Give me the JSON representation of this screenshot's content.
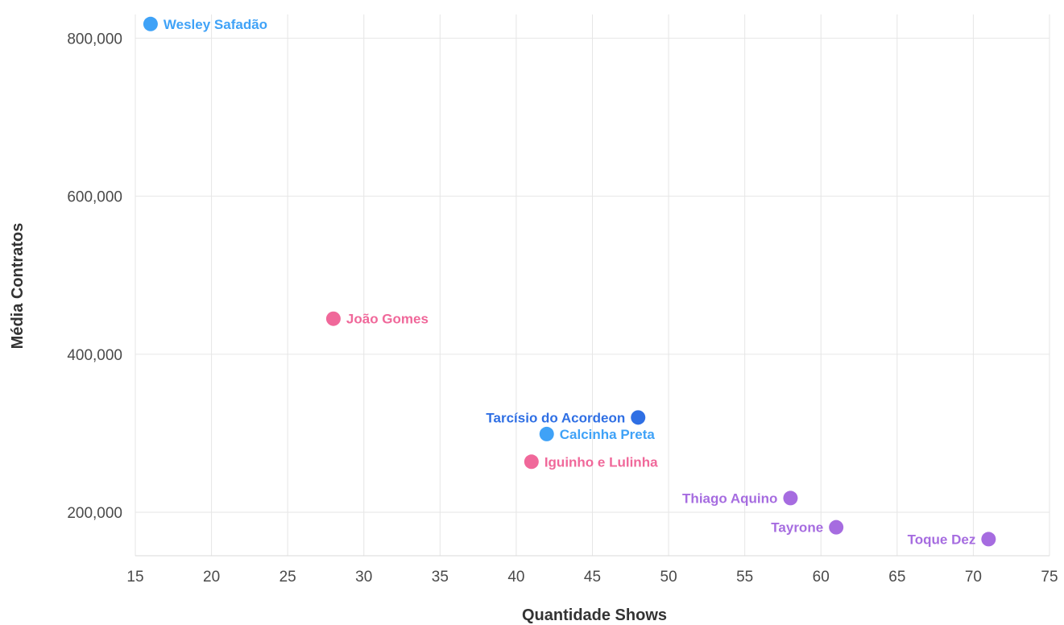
{
  "chart_data": {
    "type": "scatter",
    "xlabel": "Quantidade Shows",
    "ylabel": "Média Contratos",
    "xlim": [
      15,
      75
    ],
    "ylim": [
      145000,
      830000
    ],
    "x_ticks": [
      15,
      20,
      25,
      30,
      35,
      40,
      45,
      50,
      55,
      60,
      65,
      70,
      75
    ],
    "y_ticks": [
      200000,
      400000,
      600000,
      800000
    ],
    "y_tick_labels": [
      "200,000",
      "400,000",
      "600,000",
      "800,000"
    ],
    "grid": true,
    "points": [
      {
        "label": "Wesley Safadão",
        "x": 16,
        "y": 818000,
        "color": "#3fa2f7",
        "label_side": "right"
      },
      {
        "label": "João Gomes",
        "x": 28,
        "y": 445000,
        "color": "#f0689a",
        "label_side": "right"
      },
      {
        "label": "Tarcísio do Acordeon",
        "x": 48,
        "y": 320000,
        "color": "#2f6fe4",
        "label_side": "left"
      },
      {
        "label": "Calcinha Preta",
        "x": 42,
        "y": 299000,
        "color": "#3fa2f7",
        "label_side": "right"
      },
      {
        "label": "Iguinho e Lulinha",
        "x": 41,
        "y": 264000,
        "color": "#f0689a",
        "label_side": "right"
      },
      {
        "label": "Thiago Aquino",
        "x": 58,
        "y": 218000,
        "color": "#a66ce0",
        "label_side": "left"
      },
      {
        "label": "Tayrone",
        "x": 61,
        "y": 181000,
        "color": "#a66ce0",
        "label_side": "left"
      },
      {
        "label": "Toque Dez",
        "x": 71,
        "y": 166000,
        "color": "#a66ce0",
        "label_side": "left"
      }
    ]
  }
}
